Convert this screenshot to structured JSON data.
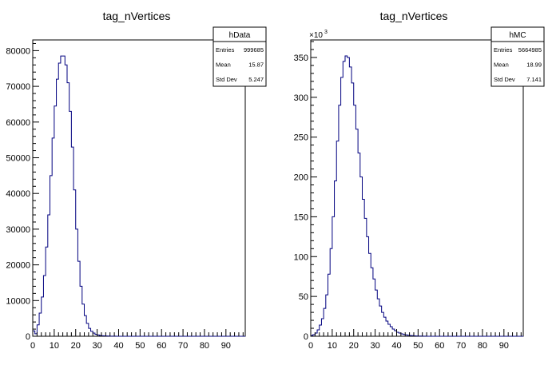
{
  "chart_data": [
    {
      "type": "histogram",
      "title": "tag_nVertices",
      "xlim": [
        0,
        99
      ],
      "ylim": [
        0,
        83000
      ],
      "x_ticks": [
        0,
        10,
        20,
        30,
        40,
        50,
        60,
        70,
        80,
        90
      ],
      "y_ticks": [
        0,
        10000,
        20000,
        30000,
        40000,
        50000,
        60000,
        70000,
        80000
      ],
      "y_tick_labels": [
        "0",
        "10000",
        "20000",
        "30000",
        "40000",
        "50000",
        "60000",
        "70000",
        "80000"
      ],
      "y_exponent": "",
      "bin_width": 1,
      "x_start": 0,
      "values": [
        1500,
        700,
        3200,
        6500,
        11000,
        17000,
        25000,
        34000,
        45000,
        55500,
        64500,
        72000,
        76500,
        78500,
        78500,
        76000,
        71000,
        63000,
        53000,
        41000,
        30000,
        21000,
        14000,
        9000,
        5800,
        3600,
        2200,
        1400,
        900,
        550,
        350,
        230,
        150,
        100,
        70,
        45,
        30,
        20,
        14,
        10,
        7,
        5,
        3,
        2,
        1,
        1,
        0,
        0,
        0,
        0,
        0,
        0,
        0,
        0,
        0,
        0,
        0,
        0,
        0,
        0,
        0,
        0,
        0,
        0,
        0,
        0,
        0,
        0,
        0,
        0,
        0,
        0,
        0,
        0,
        0,
        0,
        0,
        0,
        0,
        0,
        0,
        0,
        0,
        0,
        0,
        0,
        0,
        0,
        0,
        0,
        0,
        0,
        0,
        0,
        0,
        0,
        0,
        0,
        0
      ],
      "stats": {
        "name": "hData",
        "rows": [
          {
            "label": "Entries",
            "value": "999685"
          },
          {
            "label": "Mean",
            "value": "15.87"
          },
          {
            "label": "Std Dev",
            "value": "5.247"
          }
        ]
      }
    },
    {
      "type": "histogram",
      "title": "tag_nVertices",
      "xlim": [
        0,
        99
      ],
      "ylim": [
        0,
        372
      ],
      "x_ticks": [
        0,
        10,
        20,
        30,
        40,
        50,
        60,
        70,
        80,
        90
      ],
      "y_ticks": [
        0,
        50,
        100,
        150,
        200,
        250,
        300,
        350
      ],
      "y_tick_labels": [
        "0",
        "50",
        "100",
        "150",
        "200",
        "250",
        "300",
        "350"
      ],
      "y_exponent": "3",
      "bin_width": 1,
      "x_start": 0,
      "values": [
        1,
        2,
        4,
        8,
        14,
        22,
        35,
        52,
        78,
        110,
        150,
        195,
        245,
        290,
        325,
        345,
        352,
        350,
        338,
        318,
        290,
        260,
        230,
        200,
        172,
        148,
        125,
        104,
        86,
        72,
        58,
        47,
        38,
        30,
        24,
        19,
        15,
        12,
        9,
        7,
        5,
        4,
        3,
        2.3,
        1.7,
        1.2,
        0.9,
        0.7,
        0.5,
        0.4,
        0.3,
        0.2,
        0.1,
        0.1,
        0,
        0,
        0,
        0,
        0,
        0,
        0,
        0,
        0,
        0,
        0,
        0,
        0,
        0,
        0,
        0,
        0,
        0,
        0,
        0,
        0,
        0,
        0,
        0,
        0,
        0,
        0,
        0,
        0,
        0,
        0,
        0,
        0,
        0,
        0,
        0,
        0,
        0,
        0,
        0,
        0,
        0,
        0,
        0,
        0
      ],
      "stats": {
        "name": "hMC",
        "rows": [
          {
            "label": "Entries",
            "value": "5664985"
          },
          {
            "label": "Mean",
            "value": "18.99"
          },
          {
            "label": "Std Dev",
            "value": "7.141"
          }
        ]
      }
    }
  ],
  "colors": {
    "histogram_line": "#00007f",
    "axis": "#000000",
    "frame": "#000000"
  }
}
